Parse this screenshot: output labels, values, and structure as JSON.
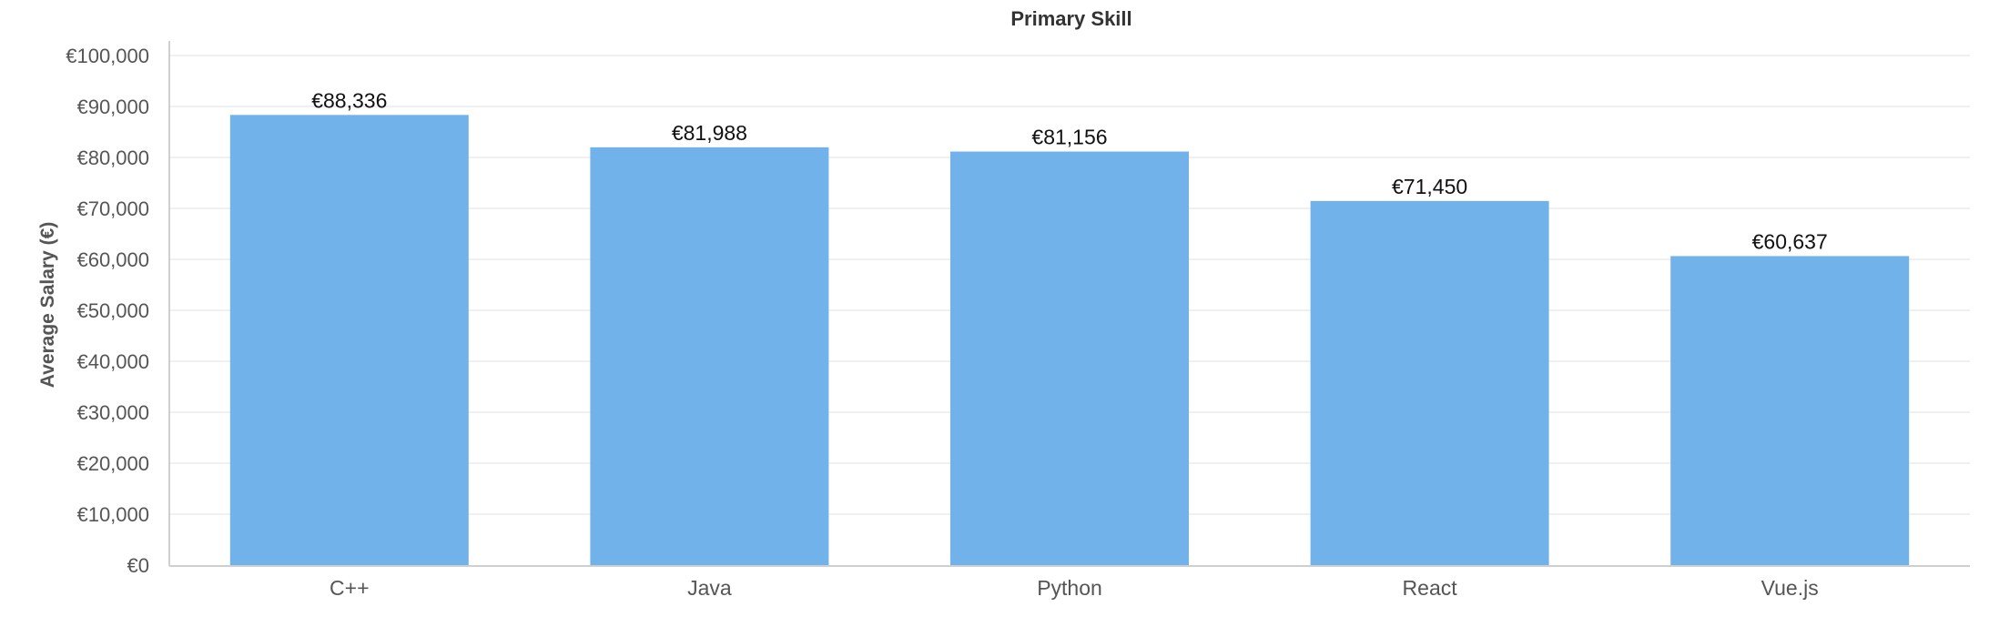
{
  "chart_data": {
    "type": "bar",
    "title": "Primary Skill",
    "xlabel": "",
    "ylabel": "Average Salary (€)",
    "categories": [
      "C++",
      "Java",
      "Python",
      "React",
      "Vue.js"
    ],
    "values": [
      88336,
      81988,
      81156,
      71450,
      60637
    ],
    "data_labels": [
      "€88,336",
      "€81,988",
      "€81,156",
      "€71,450",
      "€60,637"
    ],
    "ylim": [
      0,
      100000
    ],
    "y_ticks": [
      0,
      10000,
      20000,
      30000,
      40000,
      50000,
      60000,
      70000,
      80000,
      90000,
      100000
    ],
    "y_tick_labels": [
      "€0",
      "€10,000",
      "€20,000",
      "€30,000",
      "€40,000",
      "€50,000",
      "€60,000",
      "€70,000",
      "€80,000",
      "€90,000",
      "€100,000"
    ],
    "grid": true,
    "legend": "none",
    "bar_color": "#72b2ea"
  }
}
